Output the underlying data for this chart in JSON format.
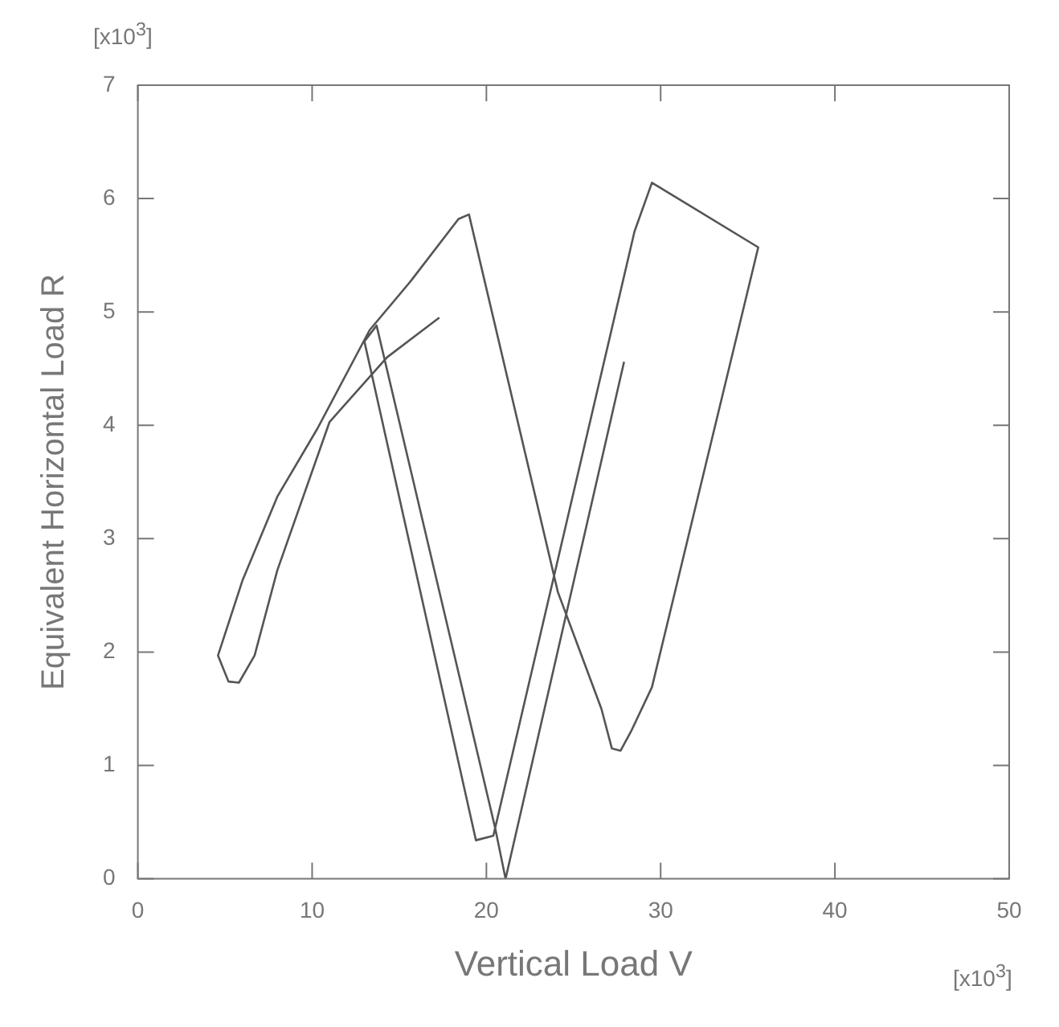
{
  "chart_data": {
    "type": "line",
    "xlabel": "Vertical Load V",
    "ylabel": "Equivalent Horizontal Load R",
    "annotations": [
      "[x10$^{3}$]",
      "[x10$^{3}$]"
    ],
    "series": [
      {
        "color": "#555555",
        "x": [
          17.3,
          14.3,
          11.0,
          8.0,
          6.7,
          5.8,
          5.2,
          4.6,
          6.0,
          8.0,
          10.3,
          13.3,
          15.7,
          18.4,
          19.0,
          24.1,
          26.6,
          27.2,
          27.7,
          28.3,
          29.5,
          35.6,
          29.5,
          28.5,
          20.4,
          19.4,
          13.0,
          13.7,
          20.5,
          21.1,
          27.9
        ],
        "values": [
          4.95,
          4.6,
          4.03,
          2.72,
          1.97,
          1.73,
          1.74,
          1.97,
          2.63,
          3.37,
          3.97,
          4.84,
          5.28,
          5.82,
          5.86,
          2.53,
          1.5,
          1.15,
          1.13,
          1.3,
          1.69,
          5.57,
          6.14,
          5.71,
          0.38,
          0.34,
          4.74,
          4.88,
          0.45,
          0,
          4.56
        ]
      }
    ],
    "xlim": [
      0,
      50
    ],
    "xticks": [
      0,
      10,
      20,
      30,
      40,
      50
    ],
    "ylim": [
      0,
      7
    ],
    "yticks": [
      0,
      1,
      2,
      3,
      4,
      5,
      6,
      7
    ],
    "grid": false,
    "legend": false,
    "marker": "none",
    "line_style": "solid"
  }
}
